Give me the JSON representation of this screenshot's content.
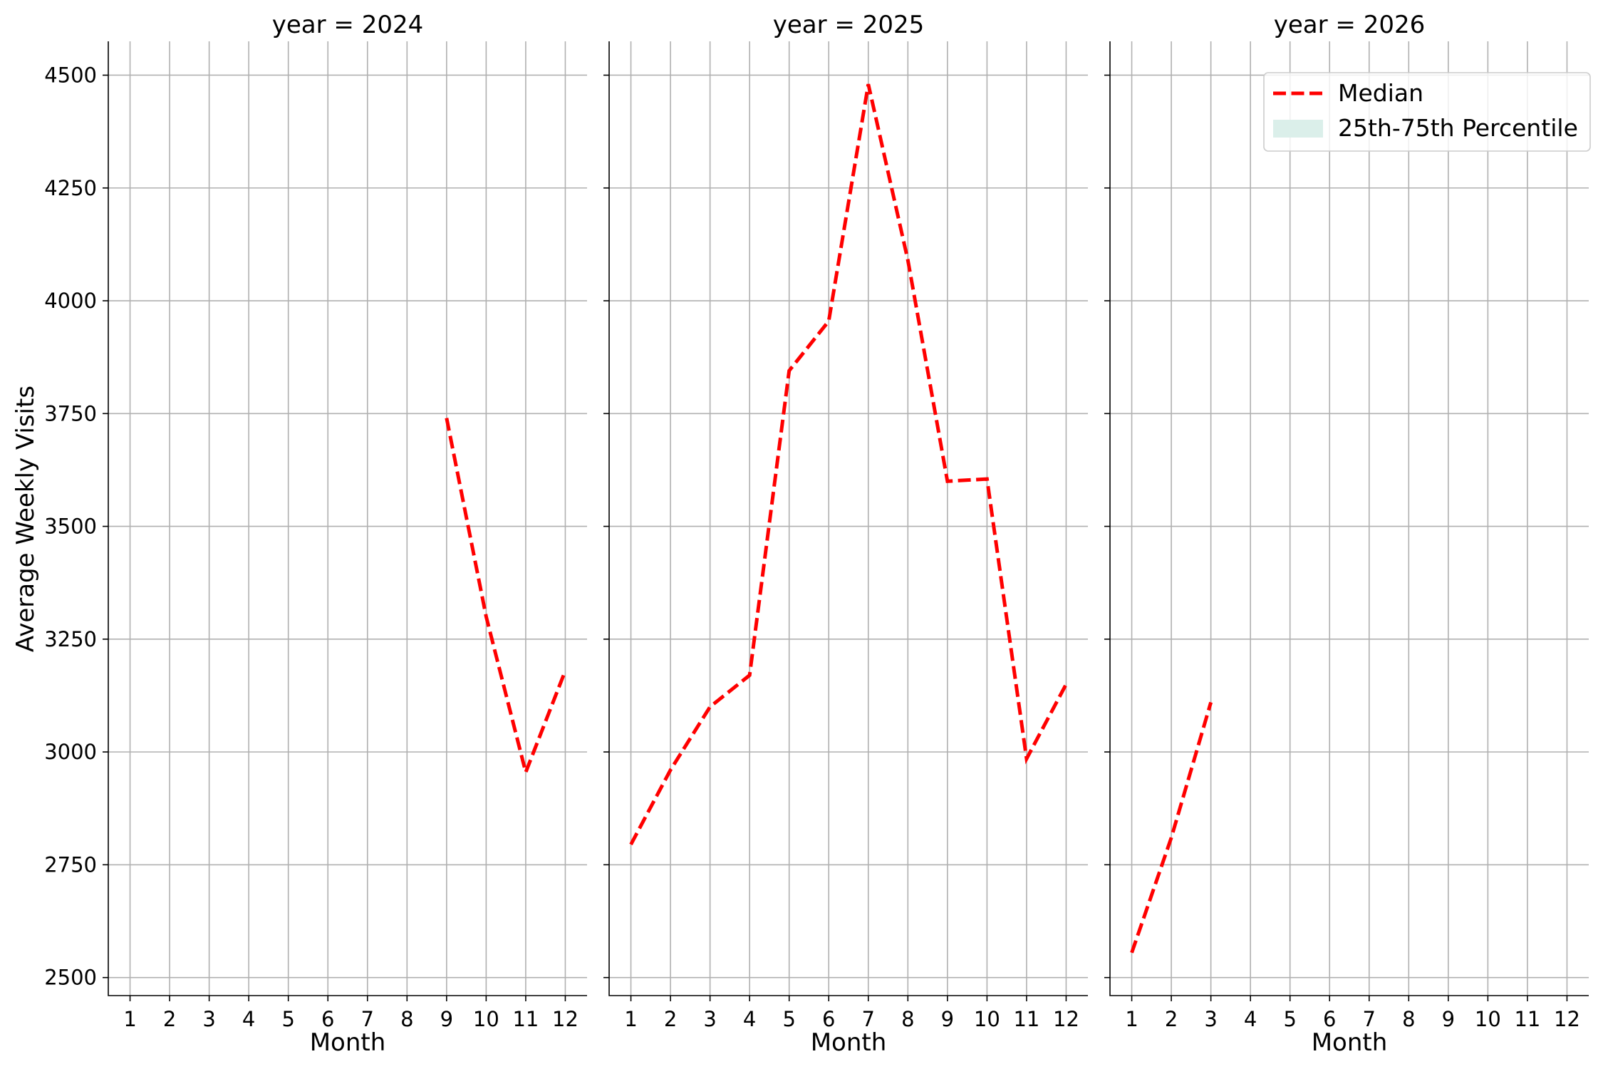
{
  "chart_data": {
    "type": "line",
    "ylabel": "Average Weekly Visits",
    "xlabel": "Month",
    "xlim": [
      0.45,
      12.55
    ],
    "ylim": [
      2460,
      4575
    ],
    "x_ticks": [
      "1",
      "2",
      "3",
      "4",
      "5",
      "6",
      "7",
      "8",
      "9",
      "10",
      "11",
      "12"
    ],
    "y_ticks": [
      "2500",
      "2750",
      "3000",
      "3250",
      "3500",
      "3750",
      "4000",
      "4250",
      "4500"
    ],
    "grid": true,
    "legend": {
      "placement": "top-right of last panel",
      "entries": [
        {
          "label": "Median",
          "style": "dashed-line",
          "color": "#ff0000"
        },
        {
          "label": "25th-75th Percentile",
          "style": "band",
          "color": "#dbefea"
        }
      ]
    },
    "panels": [
      {
        "title": "year = 2024",
        "series": [
          {
            "name": "Median",
            "x": [
              9,
              10,
              11,
              12
            ],
            "y": [
              3740,
              3300,
              2955,
              3180
            ]
          }
        ]
      },
      {
        "title": "year = 2025",
        "series": [
          {
            "name": "Median",
            "x": [
              1,
              2,
              3,
              4,
              5,
              6,
              7,
              8,
              9,
              10,
              11,
              12
            ],
            "y": [
              2795,
              2960,
              3100,
              3170,
              3845,
              3955,
              4480,
              4090,
              3600,
              3605,
              2985,
              3150
            ]
          }
        ]
      },
      {
        "title": "year = 2026",
        "series": [
          {
            "name": "Median",
            "x": [
              1,
              2,
              3
            ],
            "y": [
              2555,
              2810,
              3110
            ]
          }
        ]
      }
    ]
  }
}
